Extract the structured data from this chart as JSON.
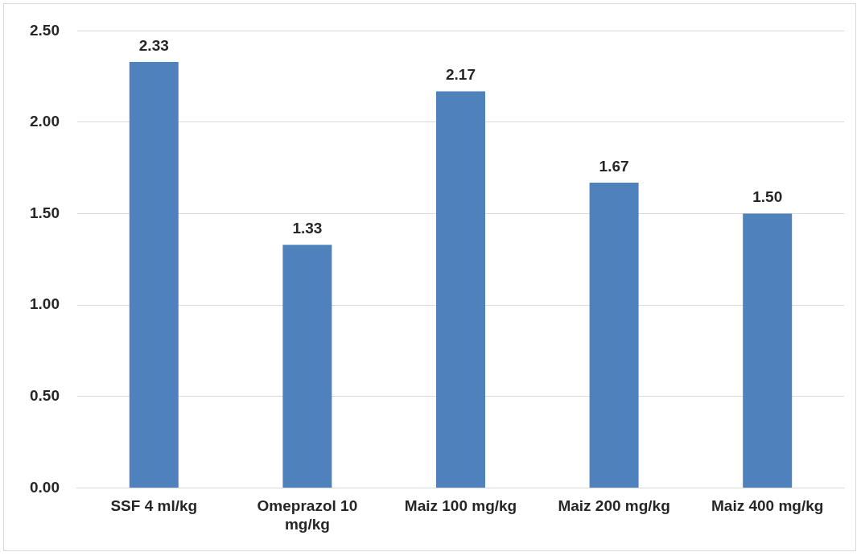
{
  "chart_data": {
    "type": "bar",
    "categories": [
      "SSF 4 ml/kg",
      "Omeprazol 10 mg/kg",
      "Maiz 100 mg/kg",
      "Maiz 200 mg/kg",
      "Maiz 400 mg/kg"
    ],
    "values": [
      2.33,
      1.33,
      2.17,
      1.67,
      1.5
    ],
    "value_labels": [
      "2.33",
      "1.33",
      "2.17",
      "1.67",
      "1.50"
    ],
    "color": "#4f81bd",
    "ylim": [
      0,
      2.5
    ],
    "yticks": [
      {
        "value": 0,
        "label": "0.00"
      },
      {
        "value": 0.5,
        "label": "0.50"
      },
      {
        "value": 1,
        "label": "1.00"
      },
      {
        "value": 1.5,
        "label": "1.50"
      },
      {
        "value": 2,
        "label": "2.00"
      },
      {
        "value": 2.5,
        "label": "2.50"
      }
    ],
    "grid": "y",
    "legend": false
  }
}
